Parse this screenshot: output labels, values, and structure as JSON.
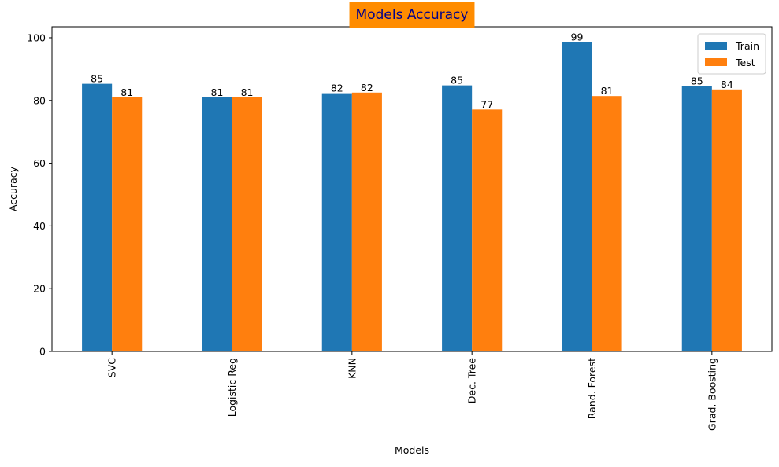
{
  "chart_data": {
    "type": "bar",
    "title": "Models Accuracy",
    "xlabel": "Models",
    "ylabel": "Accuracy",
    "ylim": [
      0,
      103.5
    ],
    "yticks": [
      0,
      20,
      40,
      60,
      80,
      100
    ],
    "categories": [
      "SVC",
      "Logistic Reg",
      "KNN",
      "Dec. Tree",
      "Rand. Forest",
      "Grad. Boosting"
    ],
    "series": [
      {
        "name": "Train",
        "color": "#1f77b4",
        "values": [
          85.3,
          81.0,
          82.3,
          84.8,
          98.6,
          84.6
        ],
        "labels": [
          "85",
          "81",
          "82",
          "85",
          "99",
          "85"
        ]
      },
      {
        "name": "Test",
        "color": "#ff7f0e",
        "values": [
          81.0,
          81.0,
          82.5,
          77.1,
          81.4,
          83.5
        ],
        "labels": [
          "81",
          "81",
          "82",
          "77",
          "81",
          "84"
        ]
      }
    ],
    "legend": "top-right",
    "grid": false,
    "title_box_color": "#ff8c00",
    "title_text_color": "#00008b",
    "x_tick_rotation": "vertical"
  }
}
